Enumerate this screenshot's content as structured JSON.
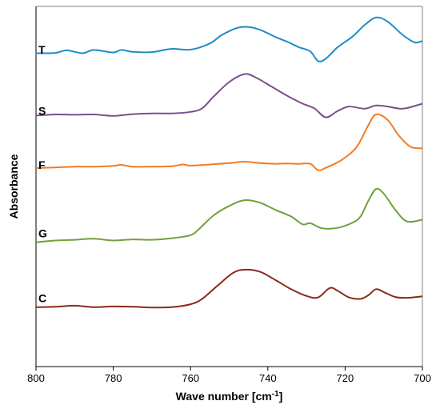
{
  "chart_data": {
    "type": "line",
    "title": "",
    "xlabel": "Wave number [cm",
    "xlabel_sup": "-1",
    "xlabel_suffix": "]",
    "ylabel": "Absorbance",
    "xlim": [
      800,
      700
    ],
    "x_reversed": true,
    "xticks": [
      800,
      780,
      760,
      740,
      720,
      700
    ],
    "xtick_labels": [
      "800",
      "780",
      "760",
      "740",
      "720",
      "700"
    ],
    "ylim": [
      0,
      100
    ],
    "y_ticks_shown": false,
    "grid": false,
    "legend": "none",
    "series": [
      {
        "name": "T",
        "color": "#1f8cc6",
        "label_value": 88,
        "points": [
          [
            800,
            87.0
          ],
          [
            795,
            87.1
          ],
          [
            792,
            87.8
          ],
          [
            788,
            87.0
          ],
          [
            785,
            87.9
          ],
          [
            780,
            87.2
          ],
          [
            778,
            87.9
          ],
          [
            775,
            87.4
          ],
          [
            770,
            87.3
          ],
          [
            765,
            88.2
          ],
          [
            760,
            88.0
          ],
          [
            755,
            89.7
          ],
          [
            752,
            92.0
          ],
          [
            748,
            94.0
          ],
          [
            745,
            94.3
          ],
          [
            742,
            93.5
          ],
          [
            738,
            91.5
          ],
          [
            735,
            90.2
          ],
          [
            732,
            88.7
          ],
          [
            729,
            87.5
          ],
          [
            727,
            84.8
          ],
          [
            725,
            85.5
          ],
          [
            722,
            88.6
          ],
          [
            718,
            91.7
          ],
          [
            715,
            94.8
          ],
          [
            712,
            96.9
          ],
          [
            709,
            95.8
          ],
          [
            705,
            92.0
          ],
          [
            702,
            90.0
          ],
          [
            700,
            90.4
          ]
        ]
      },
      {
        "name": "S",
        "color": "#7a4f8e",
        "label_value": 71,
        "points": [
          [
            800,
            69.7
          ],
          [
            795,
            70.0
          ],
          [
            790,
            69.9
          ],
          [
            785,
            70.0
          ],
          [
            780,
            69.6
          ],
          [
            775,
            70.1
          ],
          [
            770,
            70.3
          ],
          [
            765,
            70.3
          ],
          [
            760,
            70.7
          ],
          [
            757,
            71.7
          ],
          [
            754,
            75.0
          ],
          [
            750,
            79.0
          ],
          [
            746,
            81.2
          ],
          [
            743,
            80.2
          ],
          [
            739,
            77.7
          ],
          [
            735,
            75.2
          ],
          [
            731,
            73.0
          ],
          [
            728,
            71.7
          ],
          [
            725,
            69.2
          ],
          [
            722,
            70.9
          ],
          [
            719,
            72.2
          ],
          [
            715,
            71.6
          ],
          [
            712,
            72.5
          ],
          [
            709,
            72.2
          ],
          [
            705,
            71.6
          ],
          [
            700,
            73.0
          ]
        ]
      },
      {
        "name": "F",
        "color": "#f47a20",
        "label_value": 56,
        "points": [
          [
            800,
            55.1
          ],
          [
            795,
            55.3
          ],
          [
            790,
            55.5
          ],
          [
            785,
            55.5
          ],
          [
            780,
            55.7
          ],
          [
            778,
            56.0
          ],
          [
            775,
            55.5
          ],
          [
            770,
            55.5
          ],
          [
            765,
            55.6
          ],
          [
            762,
            56.1
          ],
          [
            760,
            55.8
          ],
          [
            755,
            56.1
          ],
          [
            750,
            56.5
          ],
          [
            746,
            56.9
          ],
          [
            742,
            56.5
          ],
          [
            738,
            56.3
          ],
          [
            735,
            56.4
          ],
          [
            732,
            56.3
          ],
          [
            729,
            56.3
          ],
          [
            727,
            54.5
          ],
          [
            725,
            55.2
          ],
          [
            721,
            57.3
          ],
          [
            717,
            61.0
          ],
          [
            714,
            67.0
          ],
          [
            712,
            70.0
          ],
          [
            709,
            68.5
          ],
          [
            706,
            64.0
          ],
          [
            703,
            61.0
          ],
          [
            700,
            60.6
          ]
        ]
      },
      {
        "name": "G",
        "color": "#70a03a",
        "label_value": 37,
        "points": [
          [
            800,
            34.5
          ],
          [
            795,
            35.0
          ],
          [
            790,
            35.2
          ],
          [
            785,
            35.5
          ],
          [
            780,
            35.0
          ],
          [
            775,
            35.3
          ],
          [
            770,
            35.2
          ],
          [
            765,
            35.6
          ],
          [
            760,
            36.5
          ],
          [
            758,
            38.0
          ],
          [
            754,
            42.0
          ],
          [
            750,
            44.6
          ],
          [
            746,
            46.2
          ],
          [
            742,
            45.5
          ],
          [
            738,
            43.5
          ],
          [
            734,
            41.7
          ],
          [
            731,
            39.5
          ],
          [
            729,
            39.8
          ],
          [
            726,
            38.4
          ],
          [
            722,
            38.5
          ],
          [
            718,
            40.0
          ],
          [
            716,
            41.7
          ],
          [
            714,
            46.0
          ],
          [
            712,
            49.3
          ],
          [
            710,
            48.0
          ],
          [
            707,
            43.5
          ],
          [
            704,
            40.3
          ],
          [
            700,
            40.8
          ]
        ]
      },
      {
        "name": "C",
        "color": "#8b2a1a",
        "label_value": 19,
        "points": [
          [
            800,
            16.5
          ],
          [
            795,
            16.6
          ],
          [
            790,
            16.9
          ],
          [
            785,
            16.5
          ],
          [
            780,
            16.7
          ],
          [
            775,
            16.6
          ],
          [
            770,
            16.4
          ],
          [
            765,
            16.5
          ],
          [
            760,
            17.3
          ],
          [
            757,
            18.8
          ],
          [
            753,
            22.5
          ],
          [
            749,
            26.0
          ],
          [
            746,
            26.9
          ],
          [
            742,
            26.3
          ],
          [
            738,
            24.0
          ],
          [
            734,
            21.5
          ],
          [
            730,
            19.6
          ],
          [
            727,
            19.2
          ],
          [
            724,
            21.8
          ],
          [
            722,
            21.1
          ],
          [
            719,
            19.2
          ],
          [
            716,
            18.8
          ],
          [
            714,
            19.8
          ],
          [
            712,
            21.5
          ],
          [
            710,
            20.7
          ],
          [
            707,
            19.3
          ],
          [
            704,
            19.1
          ],
          [
            700,
            19.5
          ]
        ]
      }
    ]
  }
}
